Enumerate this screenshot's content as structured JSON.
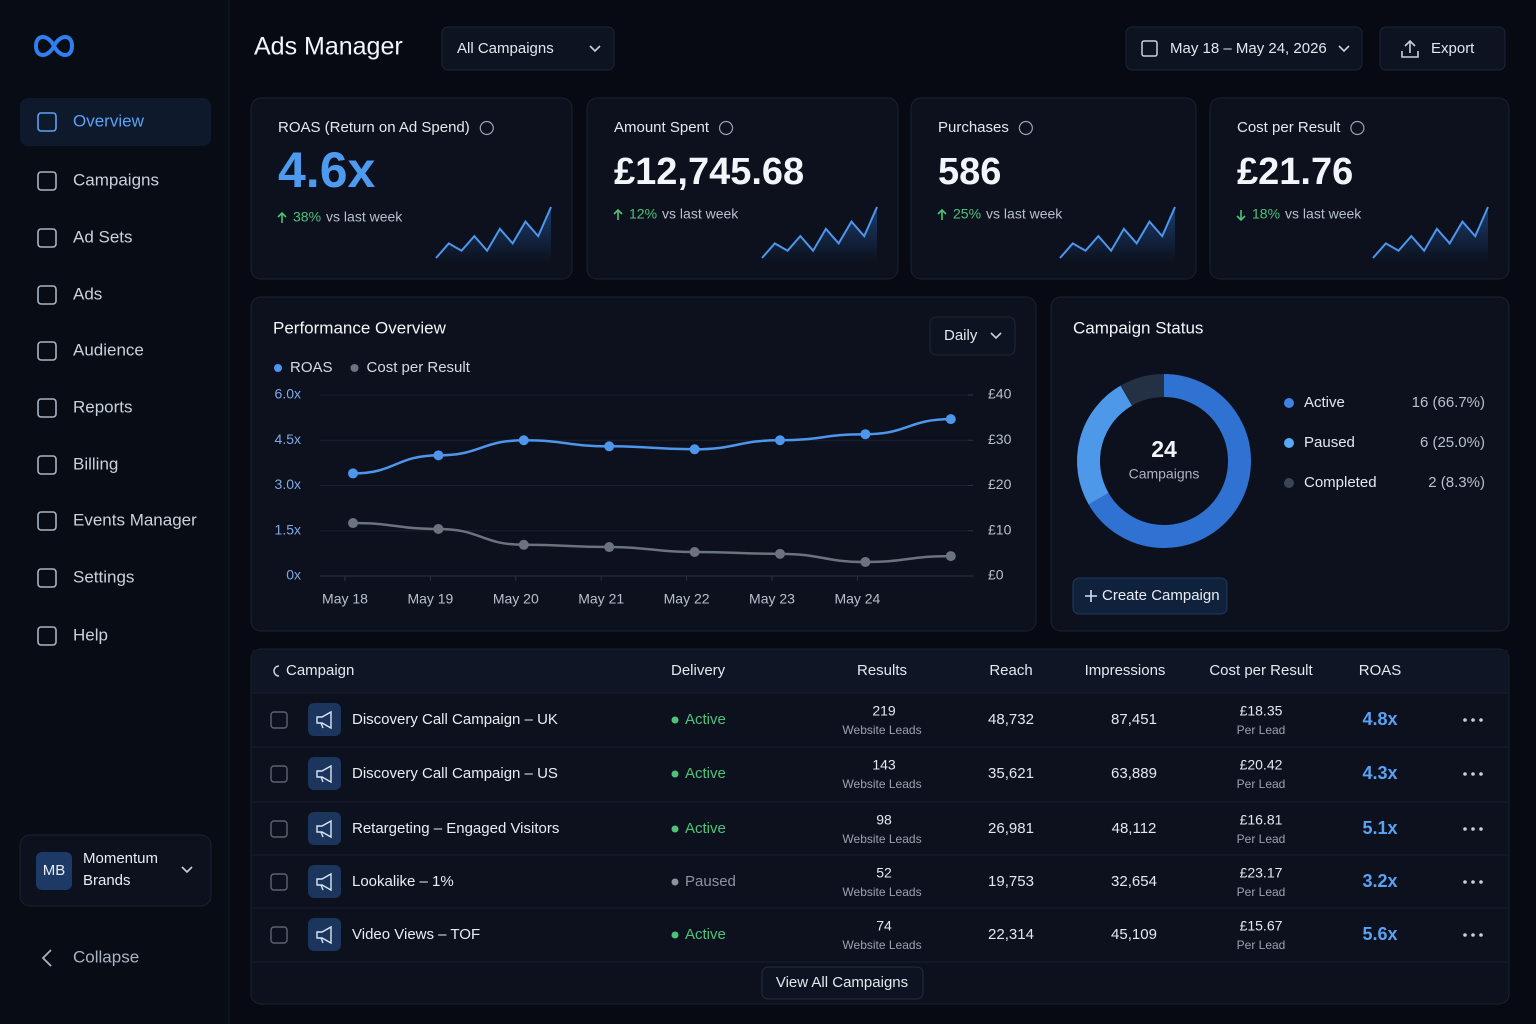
{
  "sidebar": {
    "nav": [
      "Overview",
      "Campaigns",
      "Ad Sets",
      "Ads",
      "Audience",
      "Reports",
      "Billing",
      "Events Manager",
      "Settings",
      "Help"
    ],
    "active": 0,
    "account": {
      "initials": "MB",
      "name": "Momentum Brands"
    },
    "collapse": "Collapse"
  },
  "header": {
    "title": "Ads Manager",
    "filter": "All Campaigns",
    "date_range": "May 18 – May 24, 2026",
    "export": "Export"
  },
  "kpis": [
    {
      "label": "ROAS (Return on Ad Spend)",
      "value": "4.6x",
      "change": "38%",
      "change_text": "vs last week",
      "direction": "up",
      "highlight": true,
      "trend": [
        2,
        4,
        3,
        5,
        3,
        6,
        4,
        7,
        5,
        9
      ]
    },
    {
      "label": "Amount Spent",
      "value": "£12,745.68",
      "change": "12%",
      "change_text": "vs last week",
      "direction": "up",
      "highlight": false,
      "trend": [
        2,
        4,
        3,
        5,
        3,
        6,
        4,
        7,
        5,
        9
      ]
    },
    {
      "label": "Purchases",
      "value": "586",
      "change": "25%",
      "change_text": "vs last week",
      "direction": "up",
      "highlight": false,
      "trend": [
        2,
        4,
        3,
        5,
        3,
        6,
        4,
        7,
        5,
        9
      ]
    },
    {
      "label": "Cost per Result",
      "value": "£21.76",
      "change": "18%",
      "change_text": "vs last week",
      "direction": "down",
      "highlight": false,
      "trend": [
        2,
        4,
        3,
        5,
        3,
        6,
        4,
        7,
        5,
        9
      ]
    }
  ],
  "chart_data": [
    {
      "type": "line",
      "title": "Performance Overview",
      "control": "Daily",
      "categories": [
        "May 18",
        "May 19",
        "May 20",
        "May 21",
        "May 22",
        "May 23",
        "May 24",
        null
      ],
      "series": [
        {
          "name": "ROAS",
          "color": "#4d96ec",
          "values": [
            3.4,
            4.0,
            4.5,
            4.3,
            4.2,
            4.5,
            4.7,
            5.2
          ]
        },
        {
          "name": "Cost per Result",
          "color": "#6b7280",
          "axis": "y2",
          "values": [
            11.7,
            10.4,
            6.9,
            6.4,
            5.3,
            4.9,
            3.1,
            4.4
          ]
        }
      ],
      "ylim": [
        0,
        6
      ],
      "yticks": [
        {
          "value": 0,
          "label": "0x"
        },
        {
          "value": 1.5,
          "label": "1.5x"
        },
        {
          "value": 3,
          "label": "3.0x"
        },
        {
          "value": 4.5,
          "label": "4.5x"
        },
        {
          "value": 6,
          "label": "6.0x"
        }
      ],
      "y2lim": [
        0,
        40
      ],
      "y2ticks": [
        {
          "value": 0,
          "label": "£0"
        },
        {
          "value": 10,
          "label": "£10"
        },
        {
          "value": 20,
          "label": "£20"
        },
        {
          "value": 30,
          "label": "£30"
        },
        {
          "value": 40,
          "label": "£40"
        }
      ],
      "grid": true
    },
    {
      "type": "donut",
      "title": "Campaign Status",
      "total": 24,
      "center_label": "Campaigns",
      "categories": [
        "Active",
        "Paused",
        "Completed"
      ],
      "values": [
        16,
        6,
        2
      ],
      "value_labels": [
        "16 (66.7%)",
        "6 (25.0%)",
        "2 (8.3%)"
      ],
      "colors": [
        "#2f72d2",
        "#4e98ea",
        "#243043"
      ],
      "legend_colors": [
        "#3d84e2",
        "#5aa8f5",
        "#3a4558"
      ],
      "action": "Create Campaign"
    }
  ],
  "table": {
    "columns": [
      "Campaign",
      "Delivery",
      "Results",
      "Reach",
      "Impressions",
      "Cost per Result",
      "ROAS"
    ],
    "rows": [
      {
        "name": "Discovery Call Campaign – UK",
        "delivery": "Active",
        "delivery_color": "#4fc27a",
        "results": "219",
        "results_unit": "Website Leads",
        "reach": "48,732",
        "impressions": "87,451",
        "cost": "£18.35",
        "cost_unit": "Per Lead",
        "roas": "4.8x"
      },
      {
        "name": "Discovery Call Campaign – US",
        "delivery": "Active",
        "delivery_color": "#4fc27a",
        "results": "143",
        "results_unit": "Website Leads",
        "reach": "35,621",
        "impressions": "63,889",
        "cost": "£20.42",
        "cost_unit": "Per Lead",
        "roas": "4.3x"
      },
      {
        "name": "Retargeting – Engaged Visitors",
        "delivery": "Active",
        "delivery_color": "#4fc27a",
        "results": "98",
        "results_unit": "Website Leads",
        "reach": "26,981",
        "impressions": "48,112",
        "cost": "£16.81",
        "cost_unit": "Per Lead",
        "roas": "5.1x"
      },
      {
        "name": "Lookalike – 1%",
        "delivery": "Paused",
        "delivery_color": "#8b94a3",
        "results": "52",
        "results_unit": "Website Leads",
        "reach": "19,753",
        "impressions": "32,654",
        "cost": "£23.17",
        "cost_unit": "Per Lead",
        "roas": "3.2x"
      },
      {
        "name": "Video Views – TOF",
        "delivery": "Active",
        "delivery_color": "#4fc27a",
        "results": "74",
        "results_unit": "Website Leads",
        "reach": "22,314",
        "impressions": "45,109",
        "cost": "£15.67",
        "cost_unit": "Per Lead",
        "roas": "5.6x"
      }
    ],
    "footer": "View All Campaigns"
  }
}
